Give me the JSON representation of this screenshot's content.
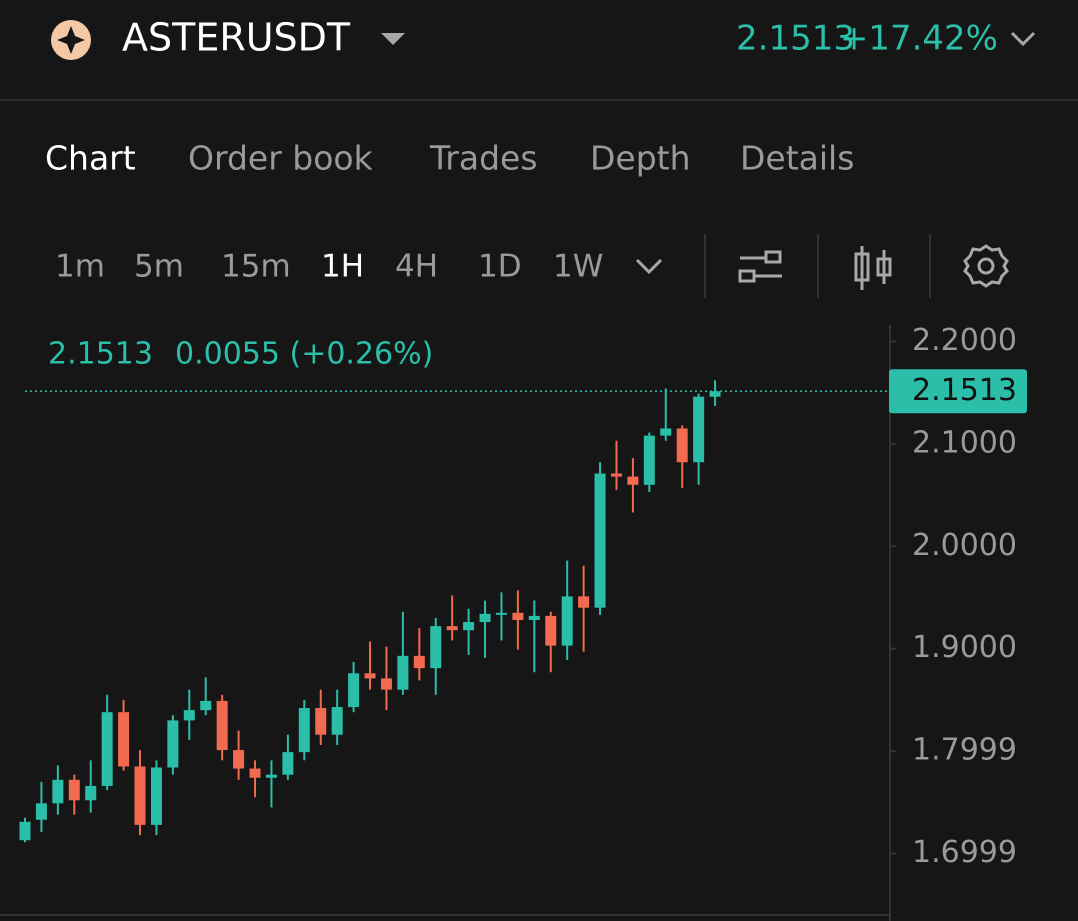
{
  "header": {
    "symbol": "ASTERUSDT",
    "price": "2.1513",
    "change": "+17.42%"
  },
  "tabs": [
    "Chart",
    "Order book",
    "Trades",
    "Depth",
    "Details"
  ],
  "intervals": [
    "1m",
    "5m",
    "15m",
    "1H",
    "4H",
    "1D",
    "1W"
  ],
  "chart_data": {
    "type": "candlestick",
    "info": [
      "2.1513",
      "0.0055 (+0.26%)"
    ],
    "last_price": 2.1513,
    "up_color": "#2bbfaa",
    "down_color": "#f26a4f",
    "open": [
      1.713,
      1.733,
      1.749,
      1.772,
      1.752,
      1.766,
      1.838,
      1.785,
      1.728,
      1.784,
      1.83,
      1.84,
      1.849,
      1.801,
      1.783,
      1.774,
      1.777,
      1.799,
      1.842,
      1.816,
      1.843,
      1.876,
      1.871,
      1.86,
      1.893,
      1.881,
      1.922,
      1.918,
      1.926,
      1.934,
      1.935,
      1.928,
      1.932,
      1.903,
      1.951,
      1.94,
      2.071,
      2.068,
      2.06,
      2.108,
      2.115,
      2.082,
      2.146
    ],
    "high": [
      1.735,
      1.77,
      1.786,
      1.777,
      1.791,
      1.855,
      1.85,
      1.801,
      1.791,
      1.835,
      1.86,
      1.872,
      1.855,
      1.82,
      1.791,
      1.791,
      1.816,
      1.85,
      1.86,
      1.86,
      1.887,
      1.907,
      1.902,
      1.936,
      1.92,
      1.93,
      1.952,
      1.939,
      1.947,
      1.955,
      1.957,
      1.947,
      1.936,
      1.986,
      1.981,
      2.082,
      2.103,
      2.086,
      2.111,
      2.154,
      2.118,
      2.149,
      2.162
    ],
    "low": [
      1.711,
      1.721,
      1.738,
      1.738,
      1.74,
      1.762,
      1.781,
      1.718,
      1.718,
      1.777,
      1.811,
      1.835,
      1.791,
      1.772,
      1.755,
      1.745,
      1.772,
      1.791,
      1.806,
      1.806,
      1.838,
      1.86,
      1.84,
      1.855,
      1.869,
      1.855,
      1.908,
      1.894,
      1.891,
      1.908,
      1.899,
      1.877,
      1.877,
      1.889,
      1.897,
      1.933,
      2.055,
      2.033,
      2.053,
      2.103,
      2.057,
      2.06,
      2.137
    ],
    "close": [
      1.731,
      1.749,
      1.772,
      1.752,
      1.766,
      1.838,
      1.785,
      1.728,
      1.784,
      1.83,
      1.84,
      1.849,
      1.801,
      1.783,
      1.774,
      1.777,
      1.799,
      1.842,
      1.816,
      1.843,
      1.876,
      1.871,
      1.86,
      1.893,
      1.881,
      1.922,
      1.918,
      1.926,
      1.934,
      1.935,
      1.928,
      1.932,
      1.903,
      1.951,
      1.94,
      2.071,
      2.068,
      2.06,
      2.108,
      2.115,
      2.082,
      2.146,
      2.1513
    ],
    "ylim": [
      1.64,
      2.216
    ],
    "yticks": [
      {
        "value": 2.2,
        "label": "2.2000"
      },
      {
        "value": 2.1,
        "label": "2.1000"
      },
      {
        "value": 2.0,
        "label": "2.0000"
      },
      {
        "value": 1.9,
        "label": "1.9000"
      },
      1.7999,
      1.6999
    ],
    "grid": false
  }
}
